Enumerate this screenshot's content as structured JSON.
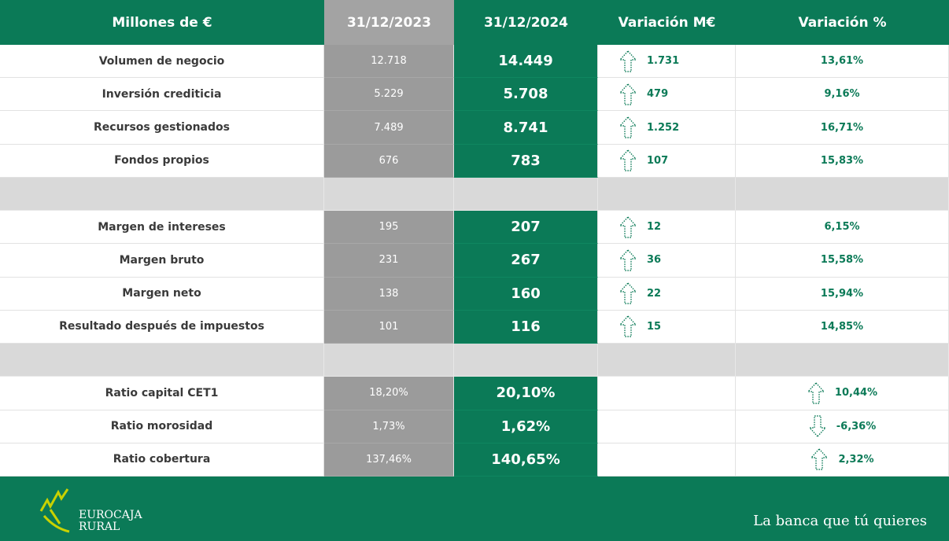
{
  "table": {
    "header": [
      "Millones de €",
      "31/12/2023",
      "31/12/2024",
      "Variación M€",
      "Variación %"
    ],
    "groups": [
      [
        {
          "label": "Volumen de negocio",
          "y2023": "12.718",
          "y2024": "14.449",
          "var_m": "1.731",
          "var_pct": "13,61%"
        },
        {
          "label": "Inversión crediticia",
          "y2023": "5.229",
          "y2024": "5.708",
          "var_m": "479",
          "var_pct": "9,16%"
        },
        {
          "label": "Recursos gestionados",
          "y2023": "7.489",
          "y2024": "8.741",
          "var_m": "1.252",
          "var_pct": "16,71%"
        },
        {
          "label": "Fondos propios",
          "y2023": "676",
          "y2024": "783",
          "var_m": "107",
          "var_pct": "15,83%"
        }
      ],
      [
        {
          "label": "Margen de intereses",
          "y2023": "195",
          "y2024": "207",
          "var_m": "12",
          "var_pct": "6,15%"
        },
        {
          "label": "Margen bruto",
          "y2023": "231",
          "y2024": "267",
          "var_m": "36",
          "var_pct": "15,58%"
        },
        {
          "label": "Margen neto",
          "y2023": "138",
          "y2024": "160",
          "var_m": "22",
          "var_pct": "15,94%"
        },
        {
          "label": "Resultado después de impuestos",
          "y2023": "101",
          "y2024": "116",
          "var_m": "15",
          "var_pct": "14,85%"
        }
      ],
      [
        {
          "label": "Ratio capital CET1",
          "y2023": "18,20%",
          "y2024": "20,10%",
          "var_pct": "10,44%"
        },
        {
          "label": "Ratio morosidad",
          "y2023": "1,73%",
          "y2024": "1,62%",
          "var_pct": "-6,36%"
        },
        {
          "label": "Ratio cobertura",
          "y2023": "137,46%",
          "y2024": "140,65%",
          "var_pct": "2,32%"
        }
      ]
    ]
  },
  "footer": {
    "logo": [
      "EUROCAJA",
      "RURAL"
    ],
    "slogan": "La banca que tú quieres"
  }
}
